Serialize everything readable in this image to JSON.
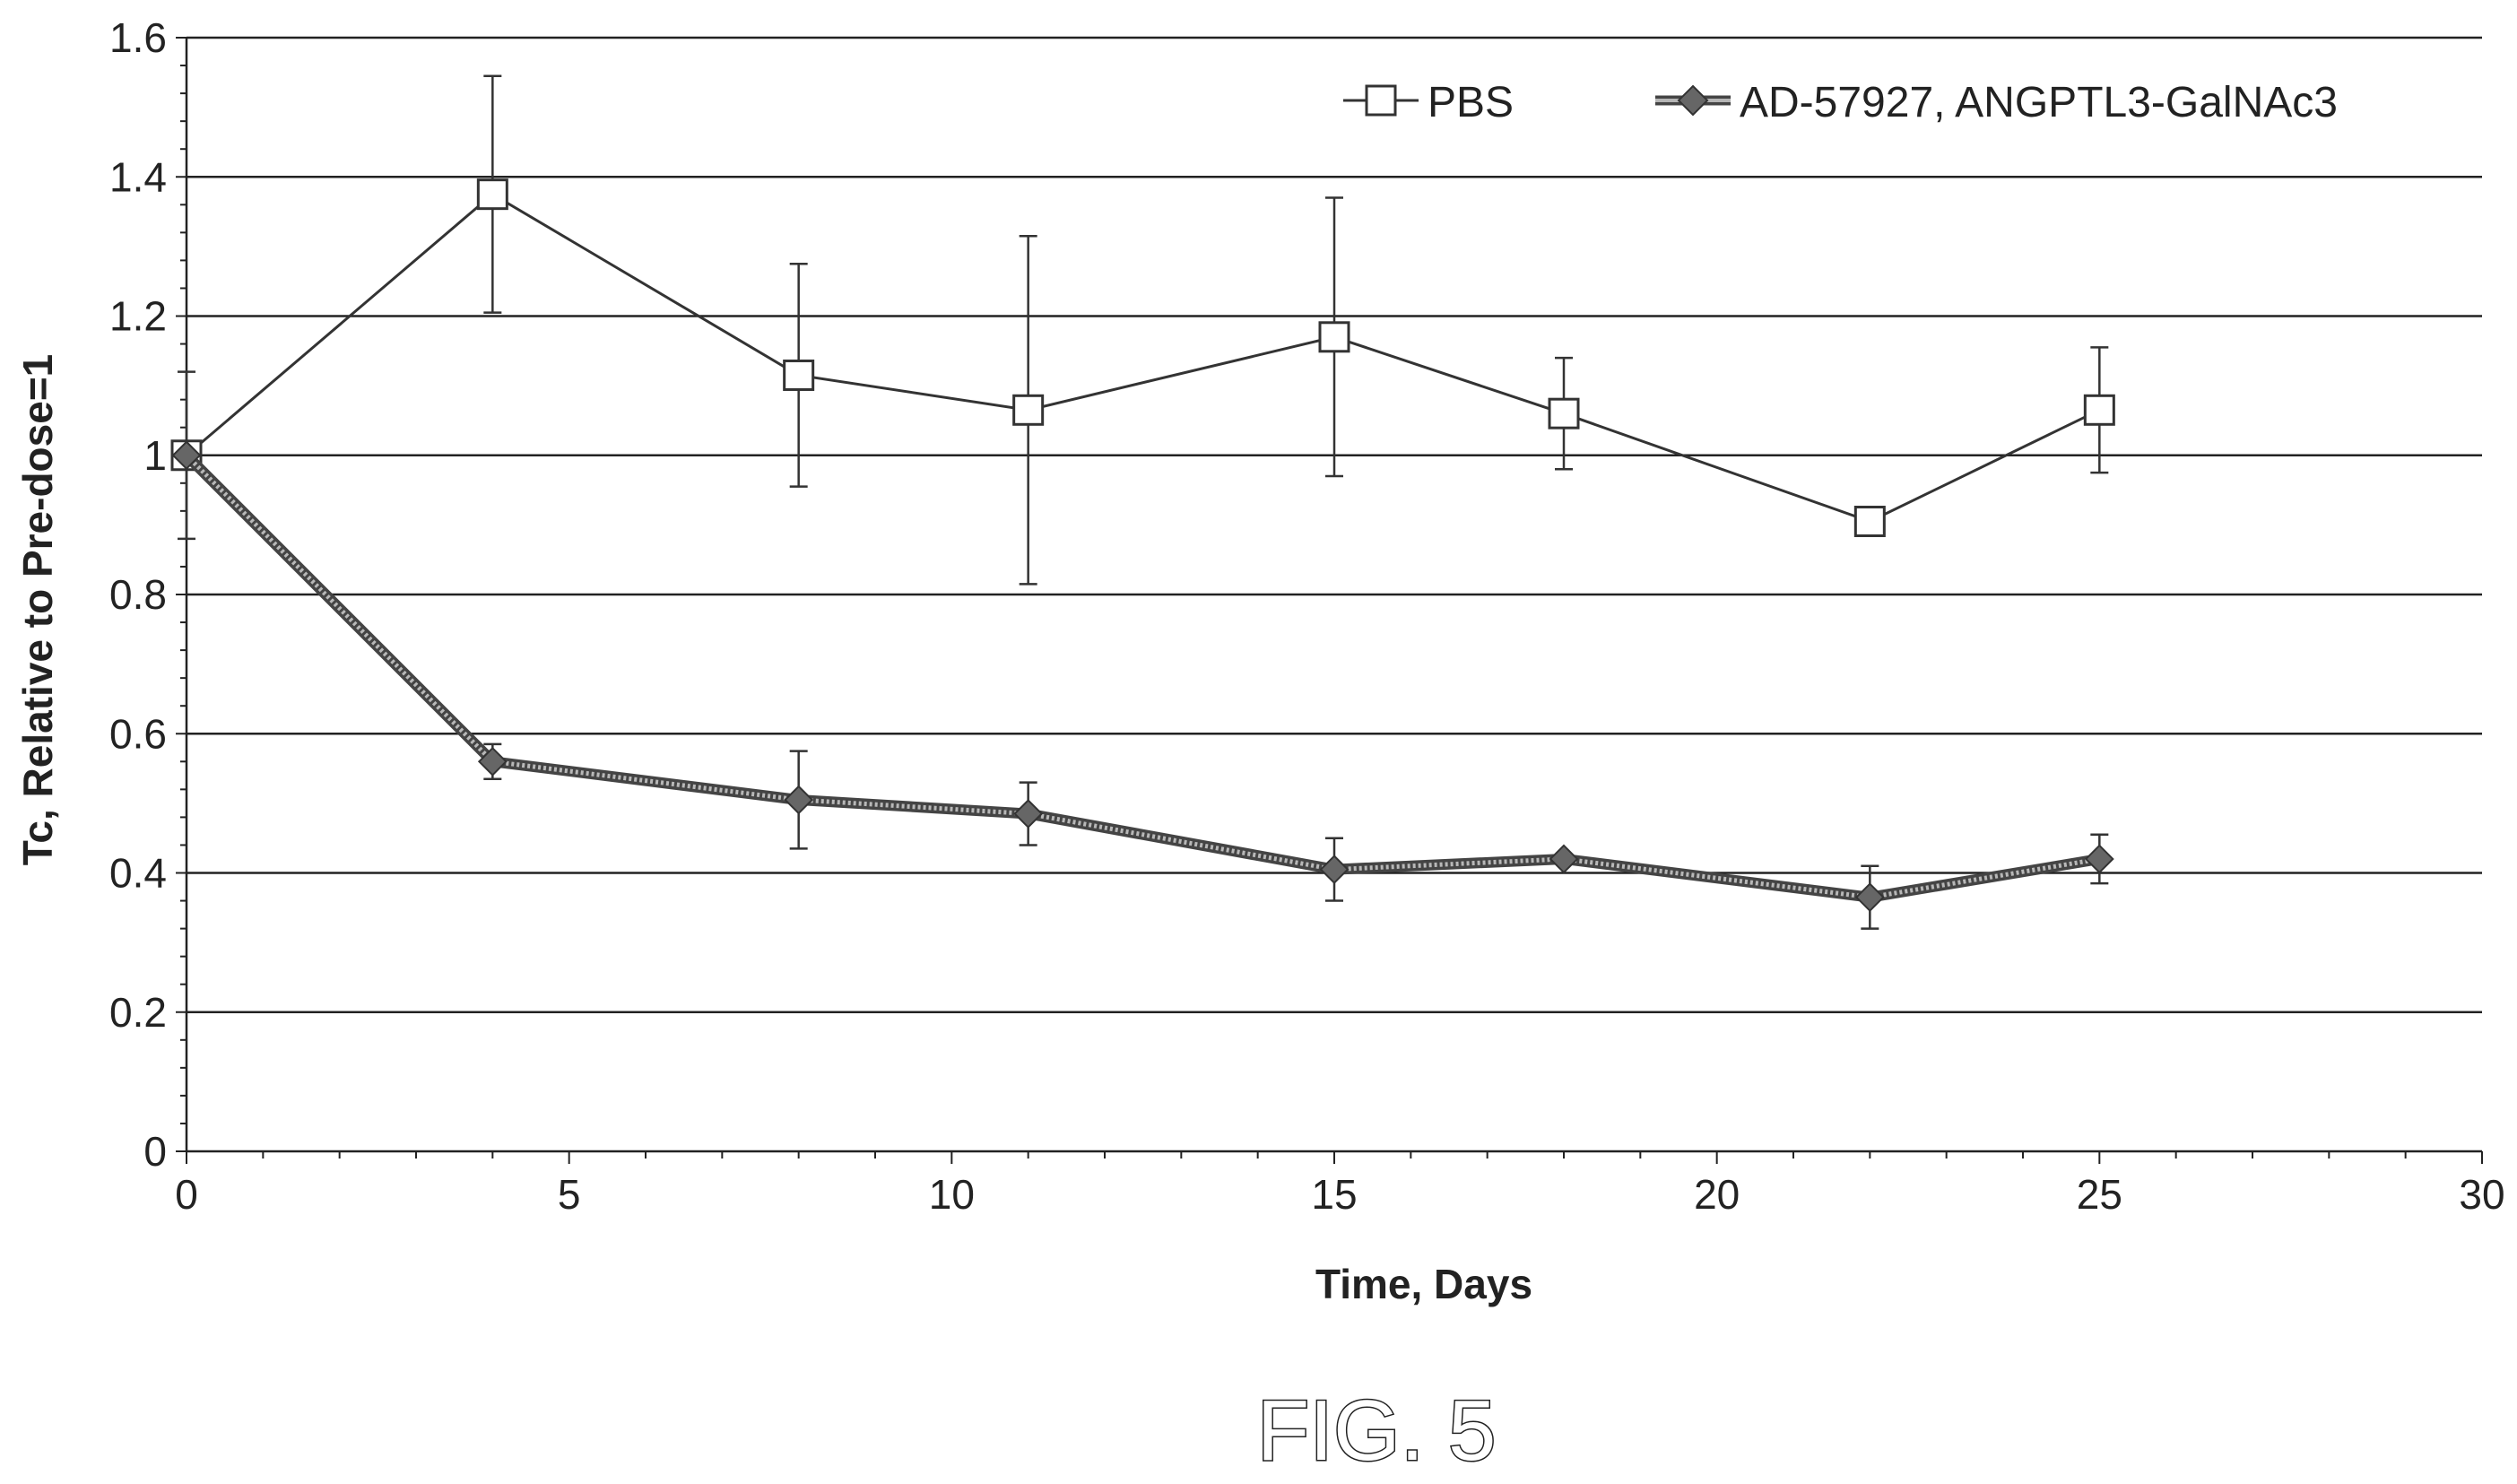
{
  "chart_data": {
    "type": "line",
    "xlabel": "Time, Days",
    "ylabel": "Tc, Relative to Pre-dose=1",
    "xlim": [
      0,
      30
    ],
    "ylim": [
      0,
      1.6
    ],
    "x_ticks": [
      "0",
      "5",
      "10",
      "15",
      "20",
      "25",
      "30"
    ],
    "y_ticks": [
      "0",
      "0.2",
      "0.4",
      "0.6",
      "0.8",
      "1",
      "1.2",
      "1.4",
      "1.6"
    ],
    "grid": "horizontal",
    "legend_position": "top-right",
    "series": [
      {
        "name": "PBS",
        "marker": "open-square",
        "x": [
          0,
          4,
          8,
          11,
          15,
          18,
          22,
          25
        ],
        "y": [
          1.0,
          1.375,
          1.115,
          1.065,
          1.17,
          1.06,
          0.905,
          1.065
        ],
        "error": [
          0.12,
          0.17,
          0.16,
          0.25,
          0.2,
          0.08,
          0.0,
          0.09
        ]
      },
      {
        "name": "AD-57927, ANGPTL3-GalNAc3",
        "marker": "filled-diamond",
        "x": [
          0,
          4,
          8,
          11,
          15,
          18,
          22,
          25
        ],
        "y": [
          1.0,
          0.56,
          0.505,
          0.485,
          0.405,
          0.42,
          0.365,
          0.42
        ],
        "error": [
          0.0,
          0.025,
          0.07,
          0.045,
          0.045,
          0.0,
          0.045,
          0.035
        ]
      }
    ]
  },
  "caption": "FIG. 5"
}
